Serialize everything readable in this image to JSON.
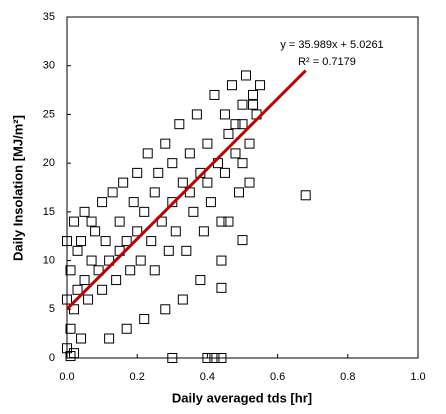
{
  "chart_data": {
    "type": "scatter",
    "x_label": "Daily averaged tds [hr]",
    "y_label": "Daily Insolation [MJ/m²]",
    "series": [
      {
        "marker": "open-square",
        "color": "#000000",
        "x": [
          0.0,
          0.0,
          0.0,
          0.01,
          0.01,
          0.02,
          0.02,
          0.03,
          0.03,
          0.04,
          0.05,
          0.05,
          0.06,
          0.07,
          0.08,
          0.09,
          0.1,
          0.1,
          0.11,
          0.12,
          0.13,
          0.14,
          0.15,
          0.15,
          0.16,
          0.17,
          0.18,
          0.19,
          0.2,
          0.2,
          0.21,
          0.22,
          0.23,
          0.24,
          0.25,
          0.25,
          0.26,
          0.27,
          0.28,
          0.29,
          0.3,
          0.3,
          0.31,
          0.32,
          0.33,
          0.34,
          0.35,
          0.35,
          0.36,
          0.37,
          0.38,
          0.39,
          0.4,
          0.4,
          0.41,
          0.42,
          0.43,
          0.44,
          0.45,
          0.45,
          0.46,
          0.47,
          0.48,
          0.49,
          0.5,
          0.5,
          0.51,
          0.52,
          0.53,
          0.54,
          0.55,
          0.48,
          0.5,
          0.52,
          0.53,
          0.44,
          0.46,
          0.38,
          0.33,
          0.28,
          0.22,
          0.17,
          0.12,
          0.07,
          0.04,
          0.68,
          0.44,
          0.5,
          0.3,
          0.4,
          0.42,
          0.44,
          0.02,
          0.01
        ],
        "values": [
          1,
          6,
          12,
          3,
          9,
          5,
          14,
          7,
          11,
          2,
          8,
          15,
          6,
          10,
          13,
          9,
          7,
          16,
          12,
          10,
          17,
          8,
          14,
          11,
          18,
          12,
          9,
          16,
          13,
          19,
          10,
          15,
          21,
          12,
          17,
          9,
          19,
          14,
          22,
          11,
          16,
          20,
          13,
          24,
          18,
          11,
          21,
          17,
          15,
          25,
          19,
          13,
          22,
          18,
          16,
          27,
          20,
          14,
          25,
          19,
          23,
          28,
          21,
          17,
          26,
          24,
          29,
          22,
          27,
          25,
          28,
          24,
          20,
          18,
          26,
          10,
          14,
          8,
          6,
          5,
          4,
          3,
          2,
          14,
          12,
          16.7,
          7.2,
          12.1,
          0,
          0,
          0,
          0,
          0.5,
          0.2
        ]
      }
    ],
    "trendline": {
      "equation": "y = 35.989x + 5.0261",
      "r2_label": "R² = 0.7179",
      "slope": 35.989,
      "intercept": 5.0261,
      "x": [
        0,
        0.68
      ],
      "color": "#c00000"
    },
    "xlim": [
      0,
      1.0
    ],
    "ylim": [
      0,
      35
    ],
    "xticks": [
      {
        "value": 0,
        "label": "0.0"
      },
      0.2,
      0.4,
      0.6,
      0.8,
      {
        "value": 1,
        "label": "1.0"
      }
    ],
    "yticks": [
      0,
      5,
      10,
      15,
      20,
      25,
      30,
      35
    ],
    "grid": false
  }
}
